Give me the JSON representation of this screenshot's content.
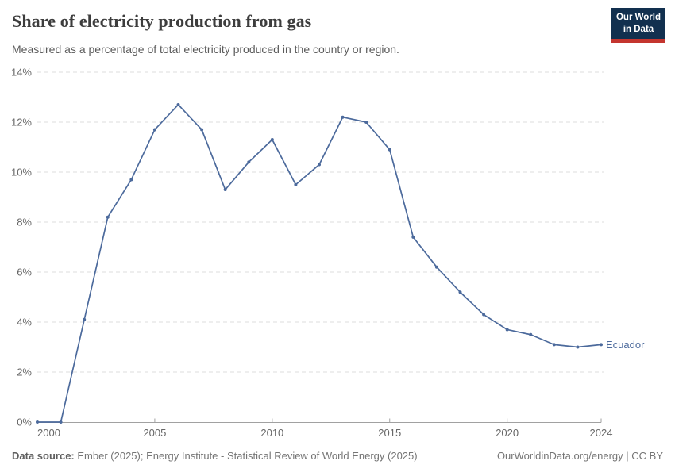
{
  "header": {
    "title": "Share of electricity production from gas",
    "subtitle": "Measured as a percentage of total electricity produced in the country or region.",
    "logo": {
      "line1": "Our World",
      "line2": "in Data",
      "bg_color": "#12304f",
      "accent_color": "#c4352f"
    }
  },
  "chart_data": {
    "type": "line",
    "title": "Share of electricity production from gas",
    "subtitle": "Measured as a percentage of total electricity produced in the country or region.",
    "x": [
      2000,
      2001,
      2002,
      2003,
      2004,
      2005,
      2006,
      2007,
      2008,
      2009,
      2010,
      2011,
      2012,
      2013,
      2014,
      2015,
      2016,
      2017,
      2018,
      2019,
      2020,
      2021,
      2022,
      2023,
      2024
    ],
    "series": [
      {
        "name": "Ecuador",
        "color": "#4c6a9c",
        "values": [
          0.0,
          0.0,
          4.1,
          8.2,
          9.7,
          11.7,
          12.7,
          11.7,
          9.3,
          10.4,
          11.3,
          9.5,
          10.3,
          12.2,
          12.0,
          10.9,
          7.4,
          6.2,
          5.2,
          4.3,
          3.7,
          3.5,
          3.1,
          3.0,
          3.1
        ]
      }
    ],
    "xlabel": "",
    "ylabel": "",
    "xlim": [
      2000,
      2024
    ],
    "ylim": [
      0,
      14
    ],
    "y_ticks": [
      0,
      2,
      4,
      6,
      8,
      10,
      12,
      14
    ],
    "y_tick_suffix": "%",
    "x_ticks": [
      2000,
      2005,
      2010,
      2015,
      2020,
      2024
    ],
    "grid": "horizontal dashed gridlines on, solid baseline at 0%",
    "legend": "end-of-line entity label",
    "markers": "small filled circles at each yearly data point"
  },
  "colors": {
    "line": "#4c6a9c",
    "gridline": "#dcdcdc",
    "axis": "#a1a1a1",
    "tick_label": "#666666"
  },
  "footer": {
    "source_label": "Data source:",
    "source_text": "Ember (2025); Energy Institute - Statistical Review of World Energy (2025)",
    "credit": "OurWorldinData.org/energy | CC BY"
  }
}
